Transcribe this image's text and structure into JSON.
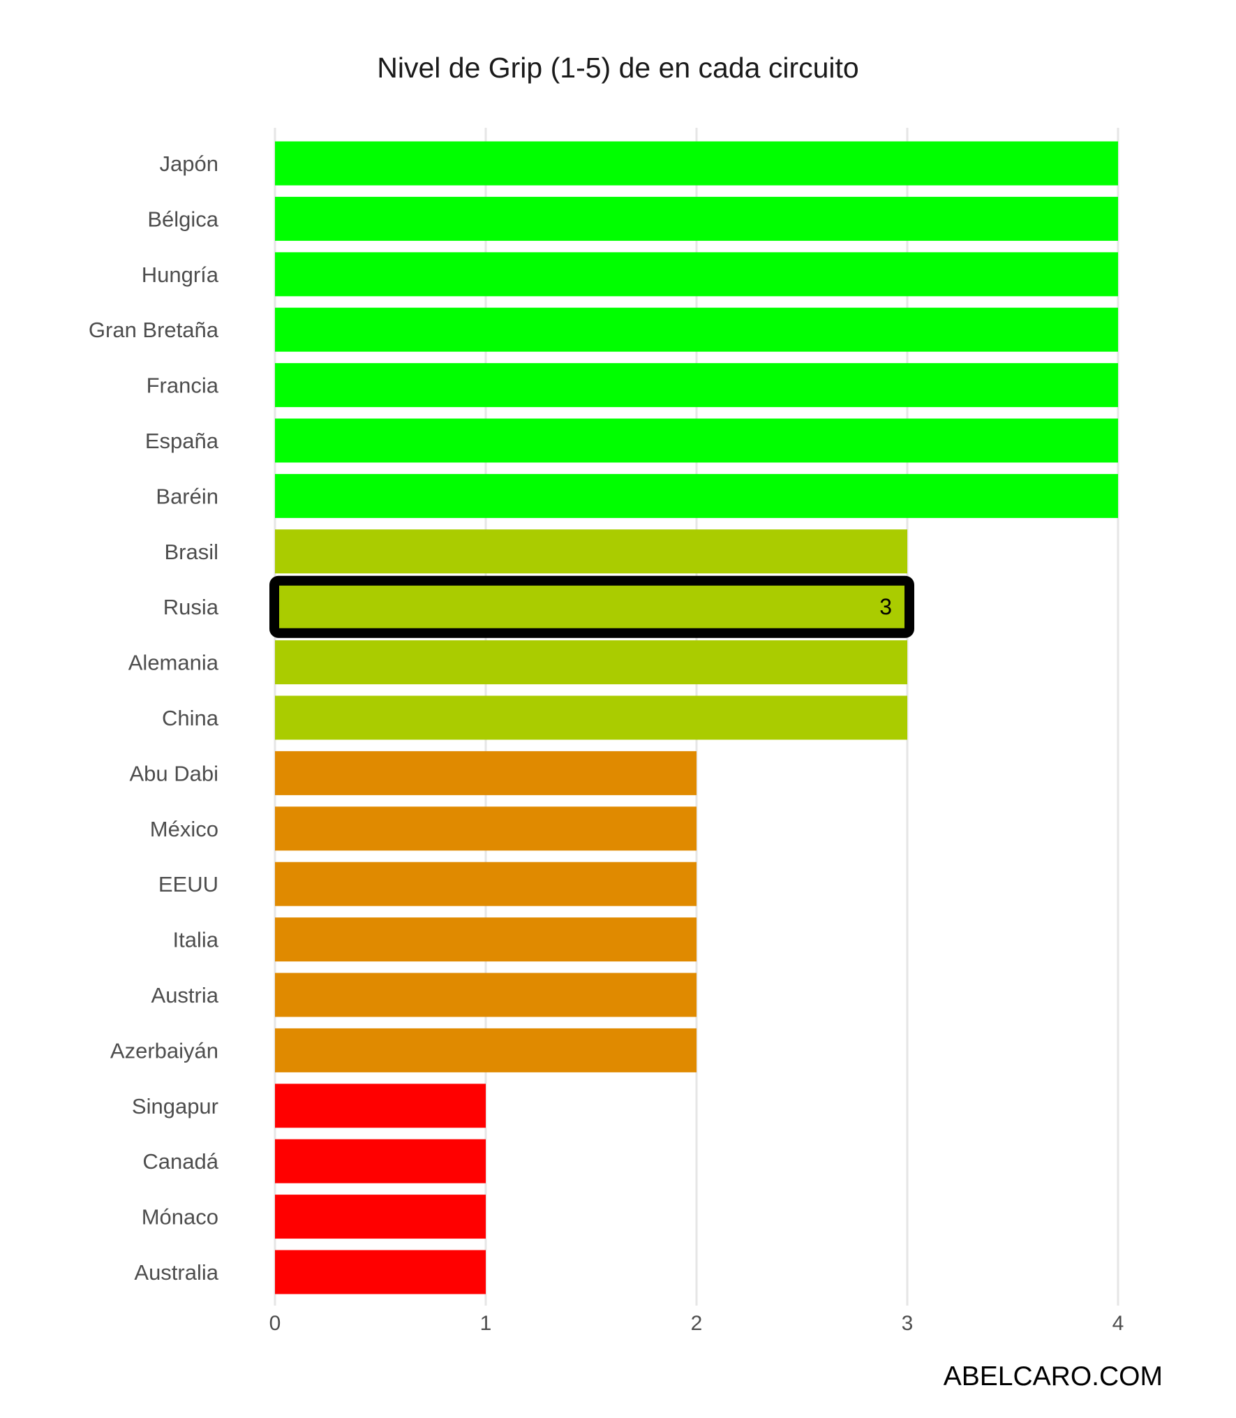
{
  "chart_data": {
    "type": "bar",
    "orientation": "horizontal",
    "title": "Nivel de Grip (1-5) de en cada circuito",
    "xlabel": "",
    "ylabel": "",
    "xlim": [
      0,
      4
    ],
    "x_ticks": [
      "0",
      "1",
      "2",
      "3",
      "4"
    ],
    "grid": "vertical",
    "legend": "none",
    "categories": [
      "Japón",
      "Bélgica",
      "Hungría",
      "Gran Bretaña",
      "Francia",
      "España",
      "Baréin",
      "Brasil",
      "Rusia",
      "Alemania",
      "China",
      "Abu Dabi",
      "México",
      "EEUU",
      "Italia",
      "Austria",
      "Azerbaiyán",
      "Singapur",
      "Canadá",
      "Mónaco",
      "Australia"
    ],
    "values": [
      4,
      4,
      4,
      4,
      4,
      4,
      4,
      3,
      3,
      3,
      3,
      2,
      2,
      2,
      2,
      2,
      2,
      1,
      1,
      1,
      1
    ],
    "level_colors": {
      "1": "#ff0000",
      "2": "#e08a00",
      "3": "#aacc00",
      "4": "#00ff00"
    },
    "highlight": {
      "category": "Rusia",
      "label": "3",
      "outline_color": "#000000"
    }
  },
  "watermark": "ABELCARO.COM"
}
